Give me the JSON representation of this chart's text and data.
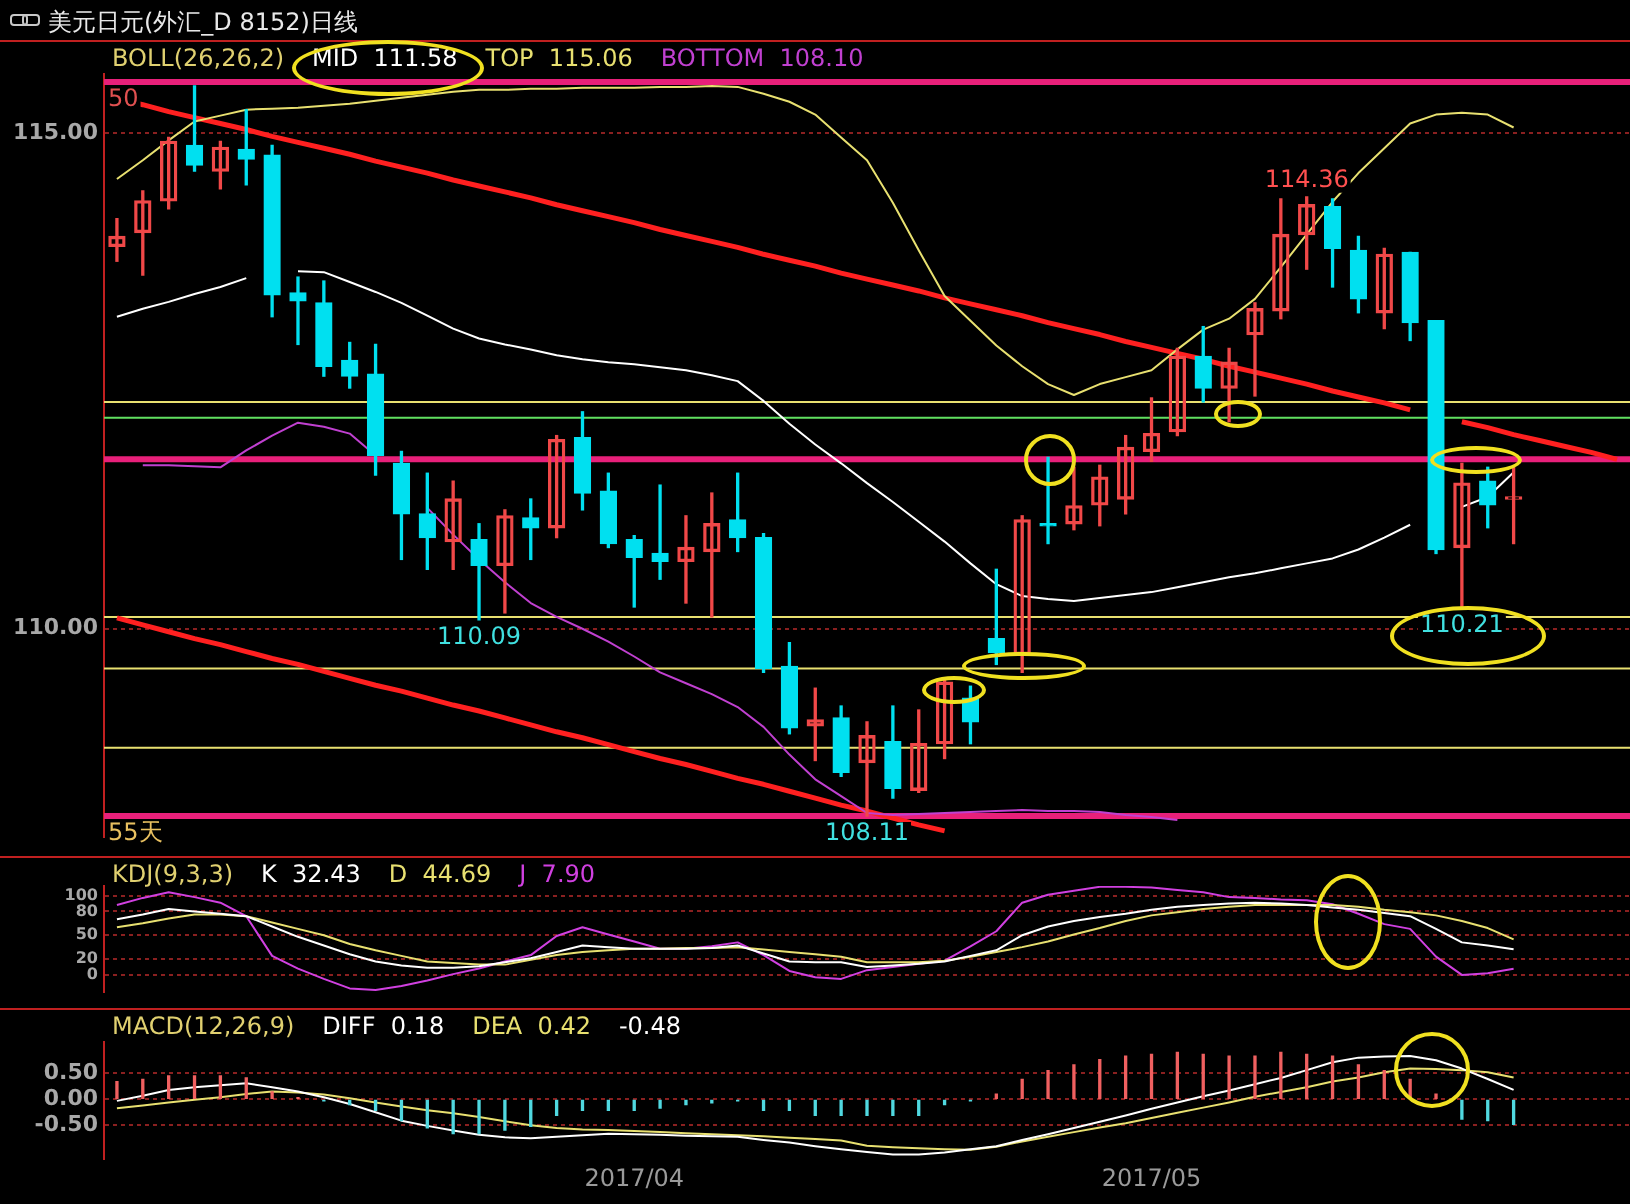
{
  "chart_data": [
    {
      "type": "candlestick",
      "title": "美元日元(外汇_D 8152)日线",
      "subtitle": "BOLL(26,26,2)",
      "categories": [
        null,
        null,
        null,
        null,
        null,
        null,
        null,
        null,
        null,
        null,
        null,
        null,
        null,
        null,
        null,
        null,
        null,
        null,
        null,
        null,
        "2017/04",
        null,
        null,
        null,
        null,
        null,
        null,
        null,
        null,
        null,
        null,
        null,
        null,
        null,
        null,
        null,
        null,
        null,
        null,
        null,
        "2017/05",
        null,
        null,
        null,
        null,
        null,
        null,
        null,
        null,
        null,
        null,
        null,
        null,
        null,
        null,
        null,
        null,
        null,
        null
      ],
      "ohlc": [
        [
          113.86,
          114.14,
          113.71,
          113.96
        ],
        [
          114.0,
          114.42,
          113.57,
          114.32
        ],
        [
          114.32,
          114.96,
          114.24,
          114.92
        ],
        [
          114.88,
          115.48,
          114.62,
          114.68
        ],
        [
          114.62,
          114.92,
          114.44,
          114.86
        ],
        [
          114.84,
          115.24,
          114.48,
          114.74
        ],
        [
          114.78,
          114.88,
          113.15,
          113.37
        ],
        [
          113.39,
          113.55,
          112.87,
          113.31
        ],
        [
          113.29,
          113.51,
          112.55,
          112.65
        ],
        [
          112.71,
          112.89,
          112.43,
          112.55
        ],
        [
          112.57,
          112.87,
          111.55,
          111.75
        ],
        [
          111.67,
          111.79,
          110.7,
          111.16
        ],
        [
          111.16,
          111.57,
          110.6,
          110.92
        ],
        [
          110.88,
          111.49,
          110.6,
          111.31
        ],
        [
          110.9,
          111.06,
          110.09,
          110.64
        ],
        [
          110.64,
          111.2,
          110.16,
          111.14
        ],
        [
          111.12,
          111.31,
          110.7,
          111.02
        ],
        [
          111.02,
          111.95,
          110.92,
          111.91
        ],
        [
          111.93,
          112.19,
          111.2,
          111.37
        ],
        [
          111.39,
          111.57,
          110.82,
          110.86
        ],
        [
          110.9,
          110.94,
          110.22,
          110.72
        ],
        [
          110.76,
          111.45,
          110.5,
          110.68
        ],
        [
          110.68,
          111.14,
          110.26,
          110.82
        ],
        [
          110.78,
          111.37,
          110.12,
          111.06
        ],
        [
          111.1,
          111.57,
          110.78,
          110.92
        ],
        [
          110.92,
          110.96,
          109.56,
          109.6
        ],
        [
          109.62,
          109.86,
          108.94,
          109.0
        ],
        [
          109.02,
          109.4,
          108.67,
          109.08
        ],
        [
          109.1,
          109.22,
          108.51,
          108.55
        ],
        [
          108.65,
          109.06,
          108.11,
          108.92
        ],
        [
          108.86,
          109.22,
          108.29,
          108.39
        ],
        [
          108.37,
          109.18,
          108.35,
          108.84
        ],
        [
          108.84,
          109.48,
          108.69,
          109.46
        ],
        [
          109.3,
          109.42,
          108.84,
          109.06
        ],
        [
          109.9,
          110.6,
          109.64,
          109.76
        ],
        [
          109.74,
          111.14,
          109.56,
          111.1
        ],
        [
          111.06,
          111.73,
          110.86,
          111.04
        ],
        [
          111.06,
          111.63,
          111.0,
          111.24
        ],
        [
          111.25,
          111.65,
          111.04,
          111.53
        ],
        [
          111.31,
          111.95,
          111.16,
          111.83
        ],
        [
          111.79,
          112.33,
          111.69,
          111.97
        ],
        [
          111.99,
          112.83,
          111.95,
          112.75
        ],
        [
          112.75,
          113.05,
          112.29,
          112.43
        ],
        [
          112.43,
          112.83,
          112.09,
          112.69
        ],
        [
          112.97,
          113.29,
          112.35,
          113.23
        ],
        [
          113.21,
          114.34,
          113.13,
          113.98
        ],
        [
          113.98,
          114.36,
          113.63,
          114.28
        ],
        [
          114.26,
          114.34,
          113.45,
          113.84
        ],
        [
          113.82,
          113.96,
          113.19,
          113.33
        ],
        [
          113.19,
          113.84,
          113.03,
          113.78
        ],
        [
          113.8,
          113.8,
          112.91,
          113.09
        ],
        [
          113.11,
          113.11,
          110.76,
          110.8
        ],
        [
          110.82,
          111.67,
          110.21,
          111.47
        ],
        [
          111.49,
          111.63,
          111.02,
          111.25
        ],
        [
          111.31,
          111.63,
          110.86,
          111.31
        ],
        null,
        null,
        null,
        null
      ],
      "colors": [
        "#f04848",
        "#f04848",
        "#f04848",
        "#00e0f0",
        "#f04848",
        "#00e0f0",
        "#00e0f0",
        "#00e0f0",
        "#00e0f0",
        "#00e0f0",
        "#00e0f0",
        "#00e0f0",
        "#00e0f0",
        "#f04848",
        "#00e0f0",
        "#f04848",
        "#00e0f0",
        "#f04848",
        "#00e0f0",
        "#00e0f0",
        "#00e0f0",
        "#00e0f0",
        "#f04848",
        "#f04848",
        "#00e0f0",
        "#00e0f0",
        "#00e0f0",
        "#f04848",
        "#00e0f0",
        "#f04848",
        "#00e0f0",
        "#f04848",
        "#f04848",
        "#00e0f0",
        "#00e0f0",
        "#f04848",
        "#00e0f0",
        "#f04848",
        "#f04848",
        "#f04848",
        "#f04848",
        "#f04848",
        "#00e0f0",
        "#f04848",
        "#f04848",
        "#f04848",
        "#f04848",
        "#00e0f0",
        "#00e0f0",
        "#f04848",
        "#00e0f0",
        "#00e0f0",
        "#f04848",
        "#00e0f0",
        "#f04848",
        null,
        null,
        null,
        null
      ],
      "series": [
        {
          "type": "line",
          "name": "MID  111.58",
          "color": "#ffffff",
          "values": [
            113.15,
            113.23,
            113.3,
            113.38,
            113.45,
            113.54,
            null,
            113.61,
            113.6,
            113.5,
            113.4,
            113.29,
            113.16,
            113.03,
            112.93,
            112.87,
            112.82,
            112.76,
            112.72,
            112.69,
            112.67,
            112.64,
            112.61,
            112.56,
            112.5,
            112.3,
            112.07,
            111.86,
            111.67,
            111.47,
            111.28,
            111.08,
            110.88,
            110.66,
            110.45,
            110.33,
            110.3,
            110.28,
            110.31,
            110.34,
            110.37,
            110.42,
            110.47,
            110.52,
            110.56,
            110.61,
            110.66,
            110.71,
            110.8,
            110.92,
            111.05,
            null,
            111.23,
            111.33,
            111.58,
            null,
            null,
            null,
            null
          ]
        },
        {
          "type": "line",
          "name": "TOP  115.06",
          "color": "#e8e070",
          "values": [
            114.54,
            114.73,
            114.93,
            115.12,
            115.18,
            115.24,
            115.25,
            115.26,
            115.28,
            115.3,
            115.33,
            115.36,
            115.39,
            115.42,
            115.44,
            115.44,
            115.45,
            115.45,
            115.46,
            115.46,
            115.46,
            115.47,
            115.47,
            115.48,
            115.47,
            115.4,
            115.32,
            115.19,
            114.96,
            114.73,
            114.3,
            113.82,
            113.36,
            113.11,
            112.86,
            112.65,
            112.47,
            112.36,
            112.47,
            112.54,
            112.61,
            112.82,
            113.02,
            113.13,
            113.33,
            113.65,
            113.98,
            114.31,
            114.6,
            114.85,
            115.1,
            115.19,
            115.21,
            115.19,
            115.06,
            null,
            null,
            null,
            null
          ]
        },
        {
          "type": "line",
          "name": "BOTTOM  108.10",
          "color": "#c040d0",
          "values": [
            null,
            111.65,
            111.65,
            111.64,
            111.63,
            111.8,
            111.95,
            112.08,
            112.04,
            111.97,
            111.75,
            null,
            111.22,
            110.95,
            110.7,
            110.47,
            110.26,
            110.12,
            110.0,
            109.87,
            109.72,
            109.56,
            109.45,
            109.34,
            109.21,
            109.01,
            108.73,
            108.48,
            108.31,
            108.14,
            108.12,
            108.13,
            108.14,
            108.15,
            108.16,
            108.17,
            108.16,
            108.16,
            108.15,
            108.12,
            108.1,
            108.07,
            null,
            null,
            null,
            null,
            null,
            null,
            null,
            null,
            null,
            null,
            null,
            null,
            null,
            null,
            null,
            null,
            null
          ]
        },
        {
          "type": "line",
          "color": "#ff2020",
          "values": [
            115.35,
            115.29,
            115.22,
            115.16,
            115.1,
            115.04,
            114.97,
            114.91,
            114.85,
            114.79,
            114.72,
            114.66,
            114.6,
            114.53,
            114.47,
            114.41,
            114.35,
            114.28,
            114.22,
            114.16,
            114.1,
            114.03,
            113.97,
            113.91,
            113.85,
            113.78,
            113.72,
            113.66,
            113.59,
            113.53,
            113.47,
            113.41,
            113.34,
            113.28,
            113.22,
            113.16,
            113.09,
            113.03,
            112.97,
            112.9,
            112.84,
            112.78,
            112.72,
            112.65,
            112.59,
            112.53,
            112.47,
            112.4,
            112.34,
            112.28,
            112.21,
            null,
            112.09,
            112.03,
            111.96,
            111.9,
            111.84,
            111.78,
            111.71
          ]
        },
        {
          "type": "line",
          "color": "#ff2020",
          "values": [
            110.11,
            110.04,
            109.97,
            109.9,
            109.84,
            109.77,
            109.7,
            109.64,
            109.57,
            109.5,
            109.43,
            109.37,
            109.3,
            109.23,
            109.17,
            109.1,
            109.03,
            108.96,
            108.9,
            108.83,
            108.76,
            108.69,
            108.63,
            108.56,
            108.49,
            108.43,
            108.36,
            108.29,
            108.22,
            108.16,
            108.09,
            108.02,
            107.96,
            null,
            null,
            null,
            null,
            null,
            null,
            null,
            null,
            null,
            null,
            null,
            null,
            null,
            null,
            null,
            null,
            null,
            null,
            null,
            null,
            null,
            null,
            null,
            null,
            null,
            null
          ]
        }
      ],
      "ref_lines": [
        {
          "axis": "y",
          "value": 115.52,
          "color": "#e8207a"
        },
        {
          "axis": "y",
          "value": 112.29,
          "color": "#e8e070"
        },
        {
          "axis": "y",
          "value": 112.13,
          "color": "#60e060"
        },
        {
          "axis": "y",
          "value": 111.71,
          "color": "#e8207a"
        },
        {
          "axis": "y",
          "value": 110.12,
          "color": "#e8e070"
        },
        {
          "axis": "y",
          "value": 109.6,
          "color": "#e8e070"
        },
        {
          "axis": "y",
          "value": 108.8,
          "color": "#e8e070"
        },
        {
          "axis": "y",
          "value": 108.11,
          "label": "55天",
          "color": "#e8207a"
        }
      ],
      "annotations": [
        {
          "text": "50",
          "y": 115.52
        },
        {
          "text": "114.36",
          "y": 114.36
        },
        {
          "text": "110.09",
          "y": 110.09
        },
        {
          "text": "108.11",
          "y": 108.11
        },
        {
          "text": "110.21",
          "y": 110.21
        }
      ],
      "ylim": [
        107.9,
        115.6
      ],
      "yticks": [
        {
          "value": 110,
          "label": "110.00"
        },
        {
          "value": 115,
          "label": "115.00"
        }
      ],
      "tick_labels": "y",
      "grid": "y"
    },
    {
      "type": "line",
      "title": "KDJ(9,3,3)",
      "categories": [
        null,
        null,
        null,
        null,
        null,
        null,
        null,
        null,
        null,
        null,
        null,
        null,
        null,
        null,
        null,
        null,
        null,
        null,
        null,
        null,
        "2017/04",
        null,
        null,
        null,
        null,
        null,
        null,
        null,
        null,
        null,
        null,
        null,
        null,
        null,
        null,
        null,
        null,
        null,
        null,
        null,
        "2017/05",
        null,
        null,
        null,
        null,
        null,
        null,
        null,
        null,
        null,
        null,
        null,
        null,
        null,
        null,
        null,
        null,
        null,
        null
      ],
      "series": [
        {
          "name": "K  32.43",
          "color": "#ffffff",
          "values": [
            70,
            76,
            83,
            80,
            77,
            74,
            61,
            48,
            37,
            26,
            17,
            12,
            9,
            9,
            11,
            16,
            21,
            29,
            37,
            35,
            33,
            33,
            33,
            34,
            37,
            27,
            17,
            16,
            16,
            10,
            12,
            14,
            17,
            24,
            31,
            50,
            61,
            68,
            73,
            77,
            82,
            86,
            88,
            90,
            91,
            90,
            88,
            85,
            82,
            78,
            74,
            58,
            41,
            37,
            32.43,
            null,
            null,
            null,
            null
          ]
        },
        {
          "name": "D  44.69",
          "color": "#e8e070",
          "values": [
            60,
            65,
            71,
            76,
            76,
            74,
            66,
            58,
            50,
            39,
            31,
            24,
            17,
            15,
            13,
            13,
            19,
            25,
            29,
            31,
            33,
            33,
            34,
            34,
            35,
            32,
            29,
            26,
            23,
            16,
            16,
            16,
            18,
            23,
            29,
            35,
            42,
            51,
            59,
            68,
            75,
            79,
            83,
            86,
            88,
            88,
            88,
            88,
            86,
            82,
            79,
            75,
            68,
            59,
            44.69,
            null,
            null,
            null,
            null
          ]
        },
        {
          "name": "J  7.90",
          "color": "#d040e0",
          "values": [
            88,
            97,
            104,
            98,
            91,
            74,
            24,
            8,
            -5,
            -17,
            -19,
            -14,
            -7,
            1,
            8,
            17,
            25,
            49,
            60,
            51,
            42,
            33,
            33,
            36,
            41,
            25,
            5,
            -3,
            -5,
            6,
            10,
            14,
            18,
            36,
            55,
            91,
            101,
            106,
            111,
            111,
            110,
            107,
            104,
            98,
            97,
            95,
            94,
            89,
            77,
            64,
            58,
            23,
            0,
            2,
            7.9,
            null,
            null,
            null,
            null
          ]
        }
      ],
      "ylim": [
        -22,
        112
      ],
      "yticks": [
        0,
        20,
        50,
        80,
        100
      ],
      "tick_labels": "y",
      "grid": "y"
    },
    {
      "type": "bar",
      "title": "MACD(12,26,9)",
      "categories": [
        null,
        null,
        null,
        null,
        null,
        null,
        null,
        null,
        null,
        null,
        null,
        null,
        null,
        null,
        null,
        null,
        null,
        null,
        null,
        null,
        "2017/04",
        null,
        null,
        null,
        null,
        null,
        null,
        null,
        null,
        null,
        null,
        null,
        null,
        null,
        null,
        null,
        null,
        null,
        null,
        null,
        "2017/05",
        null,
        null,
        null,
        null,
        null,
        null,
        null,
        null,
        null,
        null,
        null,
        null,
        null,
        null,
        null,
        null,
        null,
        null
      ],
      "values": [
        0.34,
        0.38,
        0.45,
        0.45,
        0.45,
        0.41,
        0.14,
        0.03,
        -0.03,
        -0.1,
        -0.21,
        -0.41,
        -0.55,
        -0.66,
        -0.66,
        -0.59,
        -0.52,
        -0.31,
        -0.21,
        -0.21,
        -0.21,
        -0.17,
        -0.1,
        -0.07,
        -0.03,
        -0.21,
        -0.21,
        -0.31,
        -0.31,
        -0.31,
        -0.31,
        -0.31,
        -0.1,
        -0.03,
        0.1,
        0.38,
        0.55,
        0.66,
        0.76,
        0.83,
        0.86,
        0.9,
        0.86,
        0.83,
        0.83,
        0.9,
        0.86,
        0.83,
        0.66,
        0.55,
        0.38,
        0.1,
        -0.38,
        -0.41,
        -0.48,
        null,
        null,
        null,
        null
      ],
      "colors": [
        "#f06060",
        "#f06060",
        "#f06060",
        "#f06060",
        "#f06060",
        "#f06060",
        "#f06060",
        "#f06060",
        "#50d8e0",
        "#50d8e0",
        "#50d8e0",
        "#50d8e0",
        "#50d8e0",
        "#50d8e0",
        "#50d8e0",
        "#50d8e0",
        "#50d8e0",
        "#50d8e0",
        "#50d8e0",
        "#50d8e0",
        "#50d8e0",
        "#50d8e0",
        "#50d8e0",
        "#50d8e0",
        "#50d8e0",
        "#50d8e0",
        "#50d8e0",
        "#50d8e0",
        "#50d8e0",
        "#50d8e0",
        "#50d8e0",
        "#50d8e0",
        "#50d8e0",
        "#50d8e0",
        "#f06060",
        "#f06060",
        "#f06060",
        "#f06060",
        "#f06060",
        "#f06060",
        "#f06060",
        "#f06060",
        "#f06060",
        "#f06060",
        "#f06060",
        "#f06060",
        "#f06060",
        "#f06060",
        "#f06060",
        "#f06060",
        "#f06060",
        "#f06060",
        "#50d8e0",
        "#50d8e0",
        "#50d8e0",
        null,
        null,
        null,
        null
      ],
      "series": [
        {
          "type": "line",
          "name": "DIFF  0.18",
          "color": "#ffffff",
          "values": [
            -0.03,
            0.07,
            0.18,
            0.23,
            0.27,
            0.31,
            0.23,
            0.15,
            0.04,
            -0.09,
            -0.25,
            -0.41,
            -0.51,
            -0.6,
            -0.68,
            -0.73,
            -0.75,
            -0.72,
            -0.69,
            -0.66,
            -0.67,
            -0.68,
            -0.7,
            -0.71,
            -0.72,
            -0.78,
            -0.83,
            -0.9,
            -0.96,
            -1.01,
            -1.06,
            -1.06,
            -1.02,
            -0.96,
            -0.9,
            -0.78,
            -0.67,
            -0.55,
            -0.43,
            -0.31,
            -0.18,
            -0.06,
            0.06,
            0.17,
            0.29,
            0.41,
            0.56,
            0.71,
            0.8,
            0.82,
            0.83,
            0.75,
            0.59,
            0.39,
            0.18,
            null,
            null,
            null,
            null
          ]
        },
        {
          "type": "line",
          "name": "DEA  0.42",
          "color": "#e8e070",
          "values": [
            -0.17,
            -0.12,
            -0.06,
            -0.01,
            0.04,
            0.1,
            0.15,
            0.13,
            0.09,
            0.02,
            -0.06,
            -0.14,
            -0.21,
            -0.27,
            -0.34,
            -0.42,
            -0.5,
            -0.55,
            -0.58,
            -0.59,
            -0.61,
            -0.63,
            -0.65,
            -0.67,
            -0.69,
            -0.71,
            -0.74,
            -0.76,
            -0.79,
            -0.89,
            -0.92,
            -0.94,
            -0.96,
            -0.97,
            -0.91,
            -0.81,
            -0.72,
            -0.63,
            -0.54,
            -0.46,
            -0.36,
            -0.26,
            -0.16,
            -0.06,
            0.05,
            0.14,
            0.23,
            0.34,
            0.42,
            0.52,
            0.59,
            0.58,
            0.56,
            0.52,
            0.42,
            null,
            null,
            null,
            null
          ]
        }
      ],
      "annotations": [
        "-0.48"
      ],
      "ylim": [
        -1.15,
        1.1
      ],
      "yticks": [
        {
          "value": -0.5,
          "label": "-0.50"
        },
        {
          "value": 0,
          "label": "0.00"
        },
        {
          "value": 0.5,
          "label": "0.50"
        }
      ],
      "grid": "y"
    }
  ]
}
